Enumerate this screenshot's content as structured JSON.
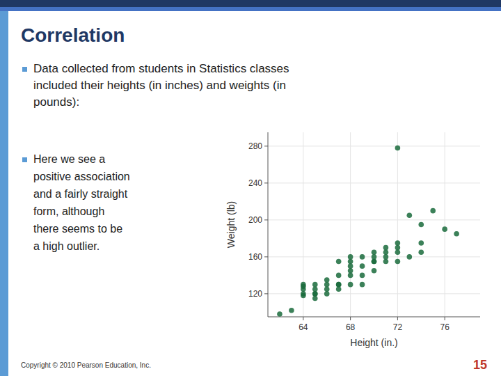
{
  "chart_data": {
    "type": "scatter",
    "title": "Correlation",
    "annotations": [
      "Data collected from students in Statistics classes\nincluded their heights (in inches) and weights (in\npounds):",
      "Here we see a\npositive association\nand a fairly straight\nform, although\nthere seems to be\na high outlier.",
      "Copyright © 2010 Pearson Education, Inc.",
      "15"
    ],
    "xlabel": "Height (in.)",
    "ylabel": "Weight (lb)",
    "x": [
      62,
      63,
      64,
      64,
      64,
      64,
      64,
      65,
      65,
      65,
      65,
      65,
      66,
      66,
      66,
      66,
      67,
      67,
      67,
      67,
      67,
      68,
      68,
      68,
      68,
      68,
      68,
      69,
      69,
      69,
      69,
      70,
      70,
      70,
      70,
      70,
      71,
      71,
      71,
      71,
      72,
      72,
      72,
      72,
      72,
      73,
      73,
      74,
      74,
      74,
      75,
      76,
      77
    ],
    "values": [
      98,
      102,
      120,
      125,
      128,
      130,
      118,
      115,
      120,
      125,
      130,
      120,
      120,
      130,
      135,
      125,
      130,
      140,
      125,
      130,
      155,
      130,
      140,
      145,
      155,
      150,
      160,
      140,
      150,
      160,
      130,
      145,
      155,
      160,
      165,
      155,
      155,
      165,
      170,
      160,
      170,
      278,
      155,
      165,
      175,
      160,
      205,
      175,
      165,
      195,
      210,
      190,
      185
    ],
    "color": "#1a6b3c",
    "xlim": [
      61,
      79
    ],
    "ylim": [
      95,
      295
    ],
    "xticks": [
      64,
      68,
      72,
      76
    ],
    "yticks": [
      120,
      160,
      200,
      240,
      280
    ]
  }
}
